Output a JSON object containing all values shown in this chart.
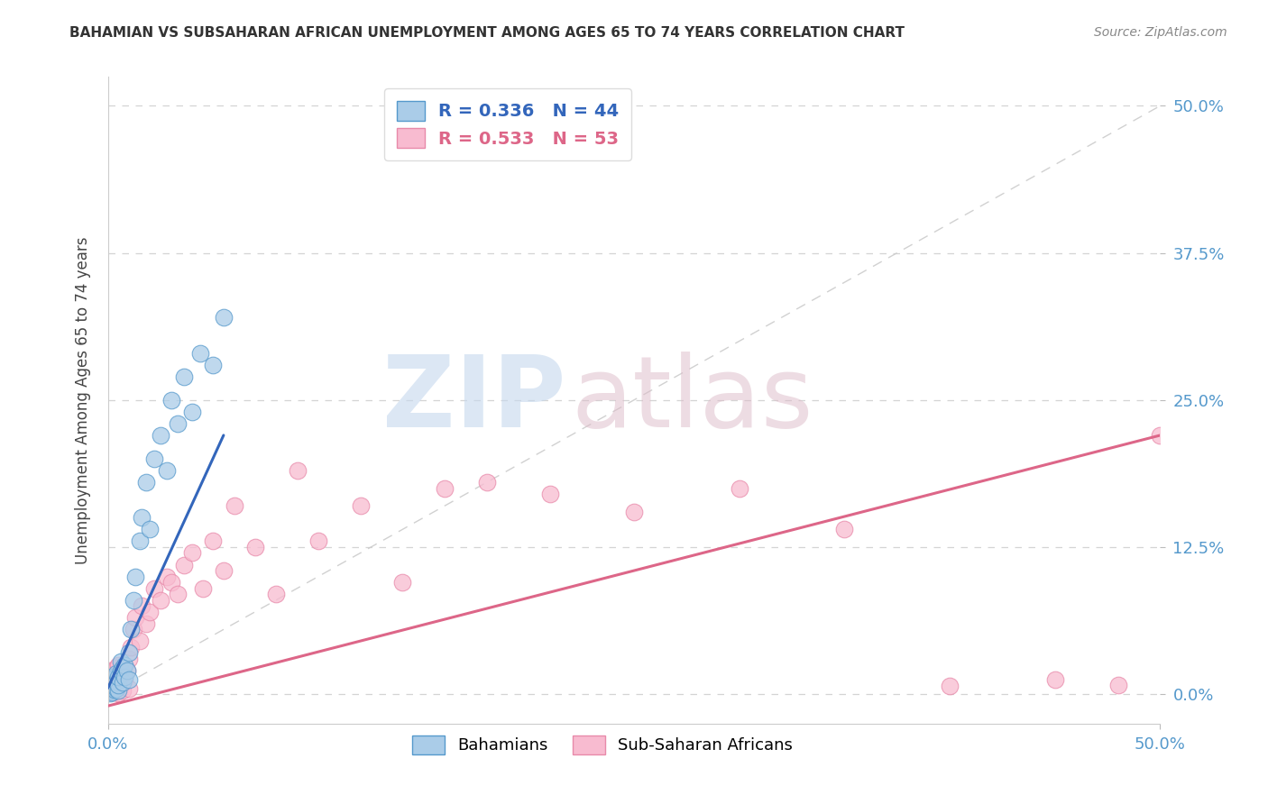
{
  "title": "BAHAMIAN VS SUBSAHARAN AFRICAN UNEMPLOYMENT AMONG AGES 65 TO 74 YEARS CORRELATION CHART",
  "source": "Source: ZipAtlas.com",
  "ylabel": "Unemployment Among Ages 65 to 74 years",
  "xlim": [
    0.0,
    0.5
  ],
  "ylim": [
    -0.025,
    0.525
  ],
  "xticks": [
    0.0,
    0.5
  ],
  "xticklabels": [
    "0.0%",
    "50.0%"
  ],
  "yticks": [
    0.0,
    0.125,
    0.25,
    0.375,
    0.5
  ],
  "yticklabels": [
    "0.0%",
    "12.5%",
    "25.0%",
    "37.5%",
    "50.0%"
  ],
  "bahamian_face": "#aacce8",
  "bahamian_edge": "#5599cc",
  "subsaharan_face": "#f8bbd0",
  "subsaharan_edge": "#e88aaa",
  "blue_R": "0.336",
  "blue_N": "44",
  "pink_R": "0.533",
  "pink_N": "53",
  "legend_bahamians": "Bahamians",
  "legend_subsaharan": "Sub-Saharan Africans",
  "bahamians_x": [
    0.001,
    0.001,
    0.001,
    0.001,
    0.001,
    0.002,
    0.002,
    0.002,
    0.002,
    0.003,
    0.003,
    0.003,
    0.004,
    0.004,
    0.004,
    0.005,
    0.005,
    0.005,
    0.006,
    0.006,
    0.007,
    0.007,
    0.008,
    0.008,
    0.009,
    0.01,
    0.01,
    0.011,
    0.012,
    0.013,
    0.015,
    0.016,
    0.018,
    0.02,
    0.022,
    0.025,
    0.028,
    0.03,
    0.033,
    0.036,
    0.04,
    0.044,
    0.05,
    0.055
  ],
  "bahamians_y": [
    0.001,
    0.003,
    0.005,
    0.008,
    0.012,
    0.002,
    0.006,
    0.01,
    0.015,
    0.004,
    0.009,
    0.014,
    0.005,
    0.011,
    0.018,
    0.003,
    0.008,
    0.015,
    0.02,
    0.028,
    0.01,
    0.022,
    0.015,
    0.025,
    0.02,
    0.012,
    0.035,
    0.055,
    0.08,
    0.1,
    0.13,
    0.15,
    0.18,
    0.14,
    0.2,
    0.22,
    0.19,
    0.25,
    0.23,
    0.27,
    0.24,
    0.29,
    0.28,
    0.32
  ],
  "subsaharan_x": [
    0.001,
    0.001,
    0.001,
    0.002,
    0.002,
    0.003,
    0.003,
    0.004,
    0.004,
    0.005,
    0.005,
    0.005,
    0.006,
    0.007,
    0.007,
    0.008,
    0.009,
    0.01,
    0.01,
    0.011,
    0.012,
    0.013,
    0.015,
    0.016,
    0.018,
    0.02,
    0.022,
    0.025,
    0.028,
    0.03,
    0.033,
    0.036,
    0.04,
    0.045,
    0.05,
    0.055,
    0.06,
    0.07,
    0.08,
    0.09,
    0.1,
    0.12,
    0.14,
    0.16,
    0.18,
    0.21,
    0.25,
    0.3,
    0.35,
    0.4,
    0.45,
    0.5,
    0.48
  ],
  "subsaharan_y": [
    0.005,
    0.012,
    0.02,
    0.004,
    0.015,
    0.002,
    0.018,
    0.006,
    0.022,
    0.001,
    0.01,
    0.025,
    0.008,
    0.003,
    0.016,
    0.012,
    0.02,
    0.005,
    0.03,
    0.04,
    0.055,
    0.065,
    0.045,
    0.075,
    0.06,
    0.07,
    0.09,
    0.08,
    0.1,
    0.095,
    0.085,
    0.11,
    0.12,
    0.09,
    0.13,
    0.105,
    0.16,
    0.125,
    0.085,
    0.19,
    0.13,
    0.16,
    0.095,
    0.175,
    0.18,
    0.17,
    0.155,
    0.175,
    0.14,
    0.007,
    0.012,
    0.22,
    0.008
  ],
  "blue_line_x": [
    0.0,
    0.055
  ],
  "blue_line_y": [
    0.005,
    0.22
  ],
  "pink_line_x": [
    0.0,
    0.5
  ],
  "pink_line_y": [
    -0.01,
    0.22
  ],
  "diag_line_x": [
    0.0,
    0.5
  ],
  "diag_line_y": [
    0.0,
    0.5
  ],
  "background_color": "#ffffff",
  "grid_color": "#d4d4d4",
  "tick_color": "#5599cc",
  "title_color": "#333333",
  "source_color": "#888888"
}
